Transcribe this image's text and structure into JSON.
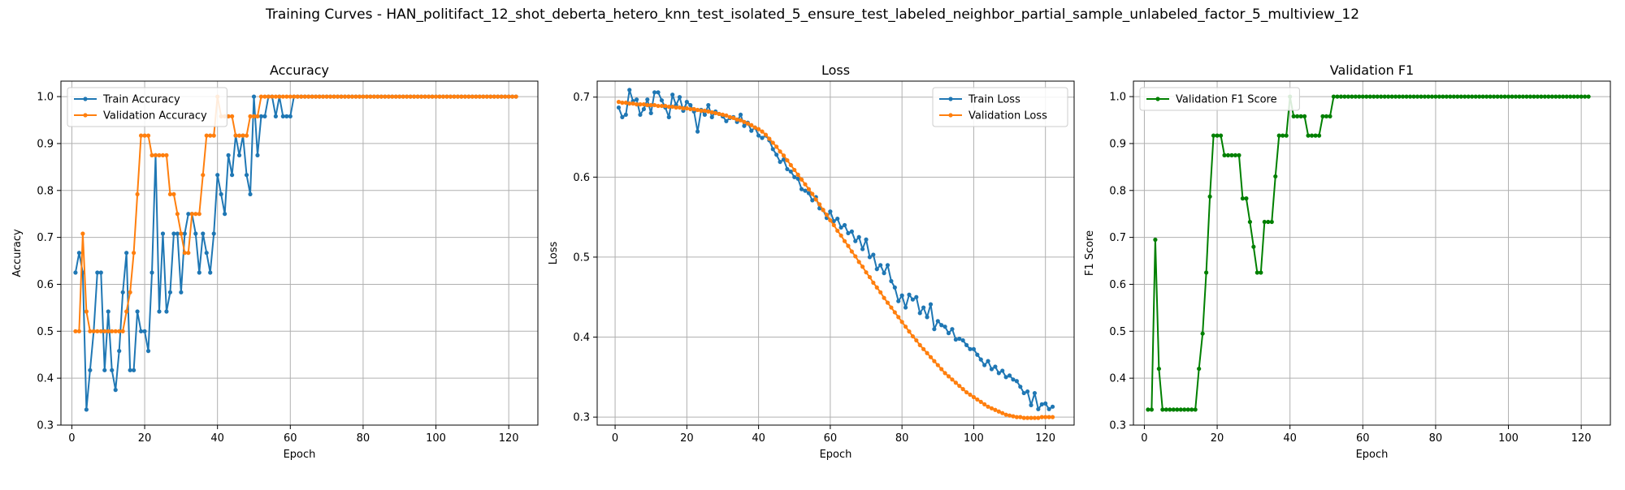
{
  "figure": {
    "title": "Training Curves - HAN_politifact_12_shot_deberta_hetero_knn_test_isolated_5_ensure_test_labeled_neighbor_partial_sample_unlabeled_factor_5_multiview_12"
  },
  "chart_data": [
    {
      "type": "line",
      "title": "Accuracy",
      "xlabel": "Epoch",
      "ylabel": "Accuracy",
      "xlim": [
        -3,
        128
      ],
      "ylim": [
        0.3,
        1.033
      ],
      "xticks": [
        0,
        20,
        40,
        60,
        80,
        100,
        120
      ],
      "yticks": [
        0.3,
        0.4,
        0.5,
        0.6,
        0.7,
        0.8,
        0.9,
        1.0
      ],
      "ytick_format": 1,
      "grid": true,
      "legend": "upper-left",
      "series": [
        {
          "name": "Train Accuracy",
          "color": "#1f77b4",
          "values": [
            0.625,
            0.667,
            0.625,
            0.333,
            0.417,
            0.5,
            0.625,
            0.625,
            0.417,
            0.542,
            0.417,
            0.375,
            0.458,
            0.583,
            0.667,
            0.417,
            0.417,
            0.542,
            0.5,
            0.5,
            0.458,
            0.625,
            0.875,
            0.542,
            0.708,
            0.542,
            0.583,
            0.708,
            0.708,
            0.583,
            0.708,
            0.75,
            0.75,
            0.708,
            0.625,
            0.708,
            0.667,
            0.625,
            0.708,
            0.833,
            0.792,
            0.75,
            0.875,
            0.833,
            0.917,
            0.875,
            0.917,
            0.833,
            0.792,
            1.0,
            0.875,
            0.958,
            0.958,
            1.0,
            1.0,
            0.958,
            1.0,
            0.958,
            0.958,
            0.958,
            1.0,
            1.0,
            1.0,
            1.0,
            1.0,
            1.0,
            1.0,
            1.0,
            1.0,
            1.0,
            1.0,
            1.0,
            1.0,
            1.0,
            1.0,
            1.0,
            1.0,
            1.0,
            1.0,
            1.0,
            1.0,
            1.0,
            1.0,
            1.0,
            1.0,
            1.0,
            1.0,
            1.0,
            1.0,
            1.0,
            1.0,
            1.0,
            1.0,
            1.0,
            1.0,
            1.0,
            1.0,
            1.0,
            1.0,
            1.0,
            1.0,
            1.0,
            1.0,
            1.0,
            1.0,
            1.0,
            1.0,
            1.0,
            1.0,
            1.0,
            1.0,
            1.0,
            1.0,
            1.0,
            1.0,
            1.0,
            1.0,
            1.0,
            1.0,
            1.0,
            1.0,
            1.0
          ]
        },
        {
          "name": "Validation Accuracy",
          "color": "#ff7f0e",
          "values": [
            0.5,
            0.5,
            0.708,
            0.542,
            0.5,
            0.5,
            0.5,
            0.5,
            0.5,
            0.5,
            0.5,
            0.5,
            0.5,
            0.5,
            0.542,
            0.583,
            0.667,
            0.792,
            0.917,
            0.917,
            0.917,
            0.875,
            0.875,
            0.875,
            0.875,
            0.875,
            0.792,
            0.792,
            0.75,
            0.708,
            0.667,
            0.667,
            0.75,
            0.75,
            0.75,
            0.833,
            0.917,
            0.917,
            0.917,
            1.0,
            0.958,
            0.958,
            0.958,
            0.958,
            0.917,
            0.917,
            0.917,
            0.917,
            0.958,
            0.958,
            0.958,
            1.0,
            1.0,
            1.0,
            1.0,
            1.0,
            1.0,
            1.0,
            1.0,
            1.0,
            1.0,
            1.0,
            1.0,
            1.0,
            1.0,
            1.0,
            1.0,
            1.0,
            1.0,
            1.0,
            1.0,
            1.0,
            1.0,
            1.0,
            1.0,
            1.0,
            1.0,
            1.0,
            1.0,
            1.0,
            1.0,
            1.0,
            1.0,
            1.0,
            1.0,
            1.0,
            1.0,
            1.0,
            1.0,
            1.0,
            1.0,
            1.0,
            1.0,
            1.0,
            1.0,
            1.0,
            1.0,
            1.0,
            1.0,
            1.0,
            1.0,
            1.0,
            1.0,
            1.0,
            1.0,
            1.0,
            1.0,
            1.0,
            1.0,
            1.0,
            1.0,
            1.0,
            1.0,
            1.0,
            1.0,
            1.0,
            1.0,
            1.0,
            1.0,
            1.0,
            1.0,
            1.0
          ]
        }
      ]
    },
    {
      "type": "line",
      "title": "Loss",
      "xlabel": "Epoch",
      "ylabel": "Loss",
      "xlim": [
        -5,
        128
      ],
      "ylim": [
        0.29,
        0.72
      ],
      "xticks": [
        0,
        20,
        40,
        60,
        80,
        100,
        120
      ],
      "yticks": [
        0.3,
        0.4,
        0.5,
        0.6,
        0.7
      ],
      "ytick_format": 1,
      "grid": true,
      "legend": "upper-right",
      "series": [
        {
          "name": "Train Loss",
          "color": "#1f77b4",
          "values": [
            0.687,
            0.675,
            0.678,
            0.709,
            0.695,
            0.697,
            0.678,
            0.685,
            0.697,
            0.68,
            0.706,
            0.706,
            0.696,
            0.687,
            0.675,
            0.703,
            0.69,
            0.7,
            0.683,
            0.694,
            0.69,
            0.682,
            0.657,
            0.684,
            0.678,
            0.69,
            0.675,
            0.682,
            0.679,
            0.676,
            0.67,
            0.674,
            0.675,
            0.669,
            0.678,
            0.664,
            0.668,
            0.658,
            0.662,
            0.652,
            0.649,
            0.652,
            0.646,
            0.635,
            0.628,
            0.619,
            0.622,
            0.61,
            0.607,
            0.6,
            0.598,
            0.585,
            0.583,
            0.58,
            0.571,
            0.575,
            0.561,
            0.559,
            0.549,
            0.557,
            0.545,
            0.548,
            0.537,
            0.54,
            0.53,
            0.532,
            0.52,
            0.525,
            0.51,
            0.522,
            0.5,
            0.503,
            0.485,
            0.49,
            0.48,
            0.49,
            0.47,
            0.462,
            0.445,
            0.452,
            0.437,
            0.453,
            0.447,
            0.45,
            0.43,
            0.437,
            0.425,
            0.441,
            0.41,
            0.42,
            0.415,
            0.413,
            0.405,
            0.41,
            0.397,
            0.398,
            0.396,
            0.39,
            0.385,
            0.385,
            0.378,
            0.372,
            0.365,
            0.37,
            0.36,
            0.363,
            0.355,
            0.358,
            0.35,
            0.352,
            0.347,
            0.345,
            0.338,
            0.33,
            0.332,
            0.315,
            0.33,
            0.31,
            0.316,
            0.317,
            0.31,
            0.313
          ]
        },
        {
          "name": "Validation Loss",
          "color": "#ff7f0e",
          "values": [
            0.694,
            0.693,
            0.693,
            0.692,
            0.692,
            0.691,
            0.691,
            0.691,
            0.69,
            0.69,
            0.69,
            0.689,
            0.689,
            0.689,
            0.688,
            0.688,
            0.687,
            0.687,
            0.686,
            0.686,
            0.685,
            0.685,
            0.684,
            0.683,
            0.683,
            0.682,
            0.681,
            0.68,
            0.679,
            0.678,
            0.677,
            0.675,
            0.674,
            0.672,
            0.671,
            0.669,
            0.667,
            0.665,
            0.662,
            0.66,
            0.657,
            0.653,
            0.648,
            0.643,
            0.638,
            0.632,
            0.627,
            0.621,
            0.615,
            0.609,
            0.603,
            0.597,
            0.591,
            0.585,
            0.579,
            0.572,
            0.566,
            0.559,
            0.553,
            0.546,
            0.54,
            0.533,
            0.527,
            0.52,
            0.514,
            0.507,
            0.501,
            0.494,
            0.488,
            0.481,
            0.475,
            0.468,
            0.462,
            0.456,
            0.449,
            0.443,
            0.437,
            0.431,
            0.425,
            0.419,
            0.413,
            0.407,
            0.401,
            0.396,
            0.39,
            0.385,
            0.38,
            0.375,
            0.37,
            0.365,
            0.36,
            0.355,
            0.351,
            0.347,
            0.343,
            0.339,
            0.335,
            0.331,
            0.328,
            0.325,
            0.322,
            0.319,
            0.316,
            0.313,
            0.311,
            0.309,
            0.307,
            0.305,
            0.303,
            0.302,
            0.301,
            0.3,
            0.3,
            0.299,
            0.299,
            0.299,
            0.299,
            0.299,
            0.3,
            0.3,
            0.3,
            0.3
          ]
        }
      ]
    },
    {
      "type": "line",
      "title": "Validation F1",
      "xlabel": "Epoch",
      "ylabel": "F1 Score",
      "xlim": [
        -3,
        128
      ],
      "ylim": [
        0.3,
        1.033
      ],
      "xticks": [
        0,
        20,
        40,
        60,
        80,
        100,
        120
      ],
      "yticks": [
        0.3,
        0.4,
        0.5,
        0.6,
        0.7,
        0.8,
        0.9,
        1.0
      ],
      "ytick_format": 1,
      "grid": true,
      "legend": "upper-left",
      "series": [
        {
          "name": "Validation F1 Score",
          "color": "#008000",
          "values": [
            0.333,
            0.333,
            0.695,
            0.42,
            0.333,
            0.333,
            0.333,
            0.333,
            0.333,
            0.333,
            0.333,
            0.333,
            0.333,
            0.333,
            0.42,
            0.495,
            0.625,
            0.787,
            0.917,
            0.917,
            0.917,
            0.875,
            0.875,
            0.875,
            0.875,
            0.875,
            0.783,
            0.783,
            0.733,
            0.68,
            0.625,
            0.625,
            0.733,
            0.733,
            0.733,
            0.83,
            0.917,
            0.917,
            0.917,
            1.0,
            0.958,
            0.958,
            0.958,
            0.958,
            0.917,
            0.917,
            0.917,
            0.917,
            0.958,
            0.958,
            0.958,
            1.0,
            1.0,
            1.0,
            1.0,
            1.0,
            1.0,
            1.0,
            1.0,
            1.0,
            1.0,
            1.0,
            1.0,
            1.0,
            1.0,
            1.0,
            1.0,
            1.0,
            1.0,
            1.0,
            1.0,
            1.0,
            1.0,
            1.0,
            1.0,
            1.0,
            1.0,
            1.0,
            1.0,
            1.0,
            1.0,
            1.0,
            1.0,
            1.0,
            1.0,
            1.0,
            1.0,
            1.0,
            1.0,
            1.0,
            1.0,
            1.0,
            1.0,
            1.0,
            1.0,
            1.0,
            1.0,
            1.0,
            1.0,
            1.0,
            1.0,
            1.0,
            1.0,
            1.0,
            1.0,
            1.0,
            1.0,
            1.0,
            1.0,
            1.0,
            1.0,
            1.0,
            1.0,
            1.0,
            1.0,
            1.0,
            1.0,
            1.0,
            1.0,
            1.0,
            1.0,
            1.0
          ]
        }
      ]
    }
  ]
}
